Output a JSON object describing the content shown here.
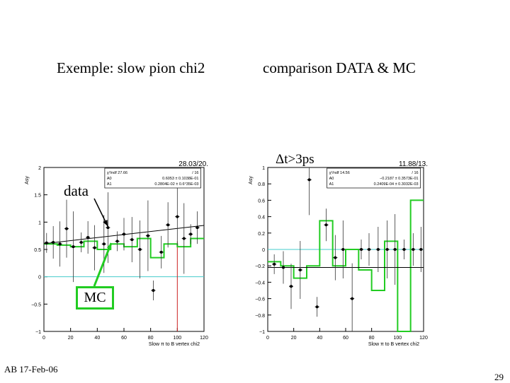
{
  "slide": {
    "title_left": "Exemple: slow pion chi2",
    "title_right": "comparison DATA & MC",
    "cut_label": "Δt>3ps",
    "footer": "AB 17-Feb-06",
    "page_number": "29",
    "annotations": {
      "data": "data",
      "mc": "MC"
    }
  },
  "chart_data": [
    {
      "type": "scatter",
      "ylabel": "Asy",
      "xlabel": "Slow π to B vertex chi2",
      "xlim": [
        0,
        120
      ],
      "ylim": [
        -1,
        2
      ],
      "xticks": [
        "0",
        "20",
        "40",
        "60",
        "80",
        "100",
        "120"
      ],
      "yticks": [
        "2",
        "1.5",
        "1",
        "0.5",
        "0",
        "−0.5",
        "−1"
      ],
      "corner_text": "28.03/20.",
      "stats": [
        [
          "χ²/ndf 27.66",
          "/ 16"
        ],
        [
          "A0",
          "0.6053 ± 0.1038E-01"
        ],
        [
          "A1",
          "0.2804E-02 ± 0.6°35E-03"
        ]
      ],
      "series": [
        {
          "name": "data",
          "x": [
            2,
            7,
            12,
            17,
            22,
            28,
            33,
            38,
            45,
            48,
            55,
            60,
            66,
            72,
            78,
            82,
            88,
            93,
            100,
            105,
            110,
            115
          ],
          "y": [
            0.62,
            0.63,
            0.6,
            0.88,
            0.55,
            0.63,
            0.72,
            0.53,
            0.6,
            0.9,
            0.65,
            0.78,
            0.68,
            0.5,
            0.75,
            -0.25,
            0.45,
            0.95,
            1.1,
            0.7,
            0.78,
            0.9
          ]
        },
        {
          "name": "MC",
          "step_edges": [
            0,
            10,
            20,
            30,
            40,
            50,
            60,
            70,
            80,
            90,
            100,
            110,
            120
          ],
          "y": [
            0.6,
            0.58,
            0.55,
            0.65,
            0.5,
            0.6,
            0.55,
            0.7,
            0.35,
            0.6,
            0.55,
            0.7
          ]
        }
      ],
      "fit_line": {
        "x": [
          0,
          120
        ],
        "y": [
          0.6053,
          0.94
        ]
      },
      "reference_line_y": 0,
      "marker_x": 100
    },
    {
      "type": "scatter",
      "ylabel": "Asy",
      "xlabel": "Slow π to B vertex chi2",
      "xlim": [
        0,
        120
      ],
      "ylim": [
        -1,
        1
      ],
      "xticks": [
        "0",
        "20",
        "40",
        "60",
        "80",
        "100",
        "120"
      ],
      "yticks": [
        "1",
        "0.8",
        "0.6",
        "0.4",
        "0.2",
        "0",
        "−0.2",
        "−0.4",
        "−0.6",
        "−0.8",
        "−1"
      ],
      "corner_text": "11.88/13.",
      "stats": [
        [
          "χ²/ndf 14.56",
          "/ 16"
        ],
        [
          "A0",
          "−0.2187 ± 0.3573E-01"
        ],
        [
          "A1",
          "0.2409E-04 ± 0.3032E-03"
        ]
      ],
      "series": [
        {
          "name": "data",
          "x": [
            5,
            12,
            18,
            25,
            32,
            38,
            45,
            52,
            58,
            65,
            72,
            78,
            85,
            92,
            98,
            105,
            112,
            118
          ],
          "y": [
            -0.18,
            -0.22,
            -0.45,
            -0.25,
            0.85,
            -0.7,
            0.3,
            -0.1,
            0.0,
            -0.6,
            0.0,
            0.0,
            0.0,
            0.0,
            0.0,
            0.0,
            0.0,
            0.0
          ]
        },
        {
          "name": "MC",
          "step_edges": [
            0,
            10,
            20,
            30,
            40,
            50,
            60,
            70,
            80,
            90,
            100,
            110,
            120
          ],
          "y": [
            -0.15,
            -0.2,
            -0.35,
            -0.2,
            0.35,
            -0.2,
            0.0,
            -0.25,
            -0.5,
            0.1,
            -1.0,
            0.6
          ]
        }
      ],
      "fit_line": {
        "x": [
          0,
          120
        ],
        "y": [
          -0.22,
          -0.22
        ]
      },
      "reference_line_y": 0,
      "marker_x": 100
    }
  ],
  "colors": {
    "mc": "#22cc22",
    "reference": "#44cccc",
    "marker": "#cc2222",
    "frame": "#000000"
  }
}
